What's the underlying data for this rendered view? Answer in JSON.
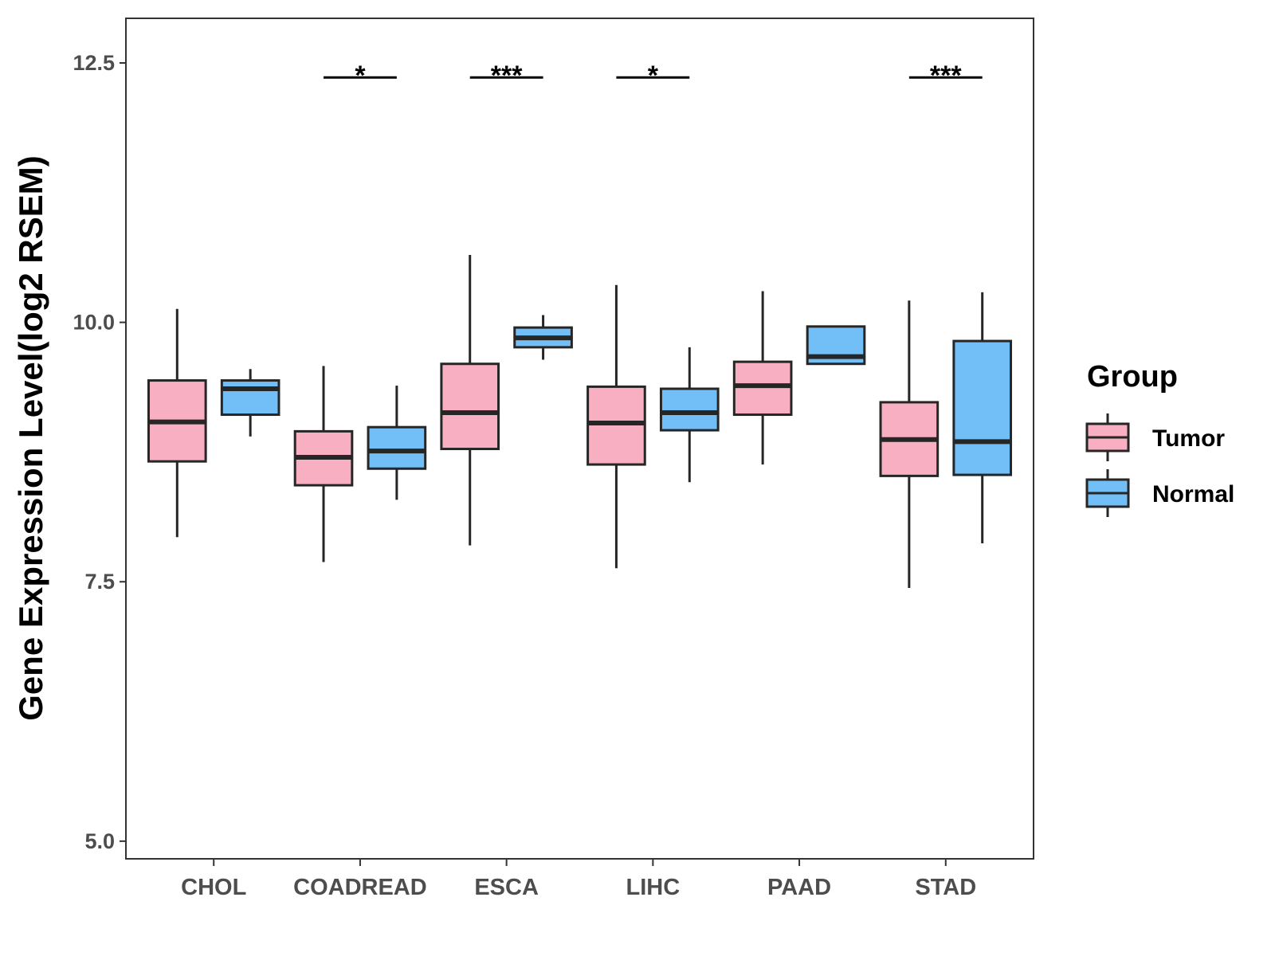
{
  "chart_data": {
    "type": "boxplot",
    "title": "",
    "xlabel": "",
    "ylabel": "Gene Expression Level(log2 RSEM)",
    "ylim": [
      4.83,
      12.93
    ],
    "yticks": [
      5.0,
      7.5,
      10.0,
      12.5
    ],
    "ytick_labels": [
      "5.0",
      "7.5",
      "10.0",
      "12.5"
    ],
    "grid": false,
    "categories": [
      "CHOL",
      "COADREAD",
      "ESCA",
      "LIHC",
      "PAAD",
      "STAD"
    ],
    "legend": {
      "title": "Group",
      "position": "right",
      "entries": [
        "Tumor",
        "Normal"
      ]
    },
    "series": [
      {
        "name": "Tumor",
        "color": "#F8AFC2",
        "boxes": [
          {
            "category": "CHOL",
            "whisker_low": 7.93,
            "q1": 8.66,
            "median": 9.04,
            "q3": 9.44,
            "whisker_high": 10.13
          },
          {
            "category": "COADREAD",
            "whisker_low": 7.69,
            "q1": 8.43,
            "median": 8.7,
            "q3": 8.95,
            "whisker_high": 9.58
          },
          {
            "category": "ESCA",
            "whisker_low": 7.85,
            "q1": 8.78,
            "median": 9.13,
            "q3": 9.6,
            "whisker_high": 10.65
          },
          {
            "category": "LIHC",
            "whisker_low": 7.63,
            "q1": 8.63,
            "median": 9.03,
            "q3": 9.38,
            "whisker_high": 10.36
          },
          {
            "category": "PAAD",
            "whisker_low": 8.63,
            "q1": 9.11,
            "median": 9.39,
            "q3": 9.62,
            "whisker_high": 10.3
          },
          {
            "category": "STAD",
            "whisker_low": 7.44,
            "q1": 8.52,
            "median": 8.87,
            "q3": 9.23,
            "whisker_high": 10.21
          }
        ]
      },
      {
        "name": "Normal",
        "color": "#72BEF6",
        "boxes": [
          {
            "category": "CHOL",
            "whisker_low": 8.9,
            "q1": 9.11,
            "median": 9.36,
            "q3": 9.44,
            "whisker_high": 9.55
          },
          {
            "category": "COADREAD",
            "whisker_low": 8.29,
            "q1": 8.59,
            "median": 8.76,
            "q3": 8.99,
            "whisker_high": 9.39
          },
          {
            "category": "ESCA",
            "whisker_low": 9.64,
            "q1": 9.76,
            "median": 9.85,
            "q3": 9.95,
            "whisker_high": 10.07
          },
          {
            "category": "LIHC",
            "whisker_low": 8.46,
            "q1": 8.96,
            "median": 9.13,
            "q3": 9.36,
            "whisker_high": 9.76
          },
          {
            "category": "PAAD",
            "whisker_low": 9.6,
            "q1": 9.6,
            "median": 9.67,
            "q3": 9.96,
            "whisker_high": 9.96
          },
          {
            "category": "STAD",
            "whisker_low": 7.87,
            "q1": 8.53,
            "median": 8.85,
            "q3": 9.82,
            "whisker_high": 10.29
          }
        ]
      }
    ],
    "significance": [
      {
        "category": "COADREAD",
        "label": "*",
        "y": 12.36
      },
      {
        "category": "ESCA",
        "label": "***",
        "y": 12.36
      },
      {
        "category": "LIHC",
        "label": "*",
        "y": 12.36
      },
      {
        "category": "STAD",
        "label": "***",
        "y": 12.36
      }
    ]
  }
}
